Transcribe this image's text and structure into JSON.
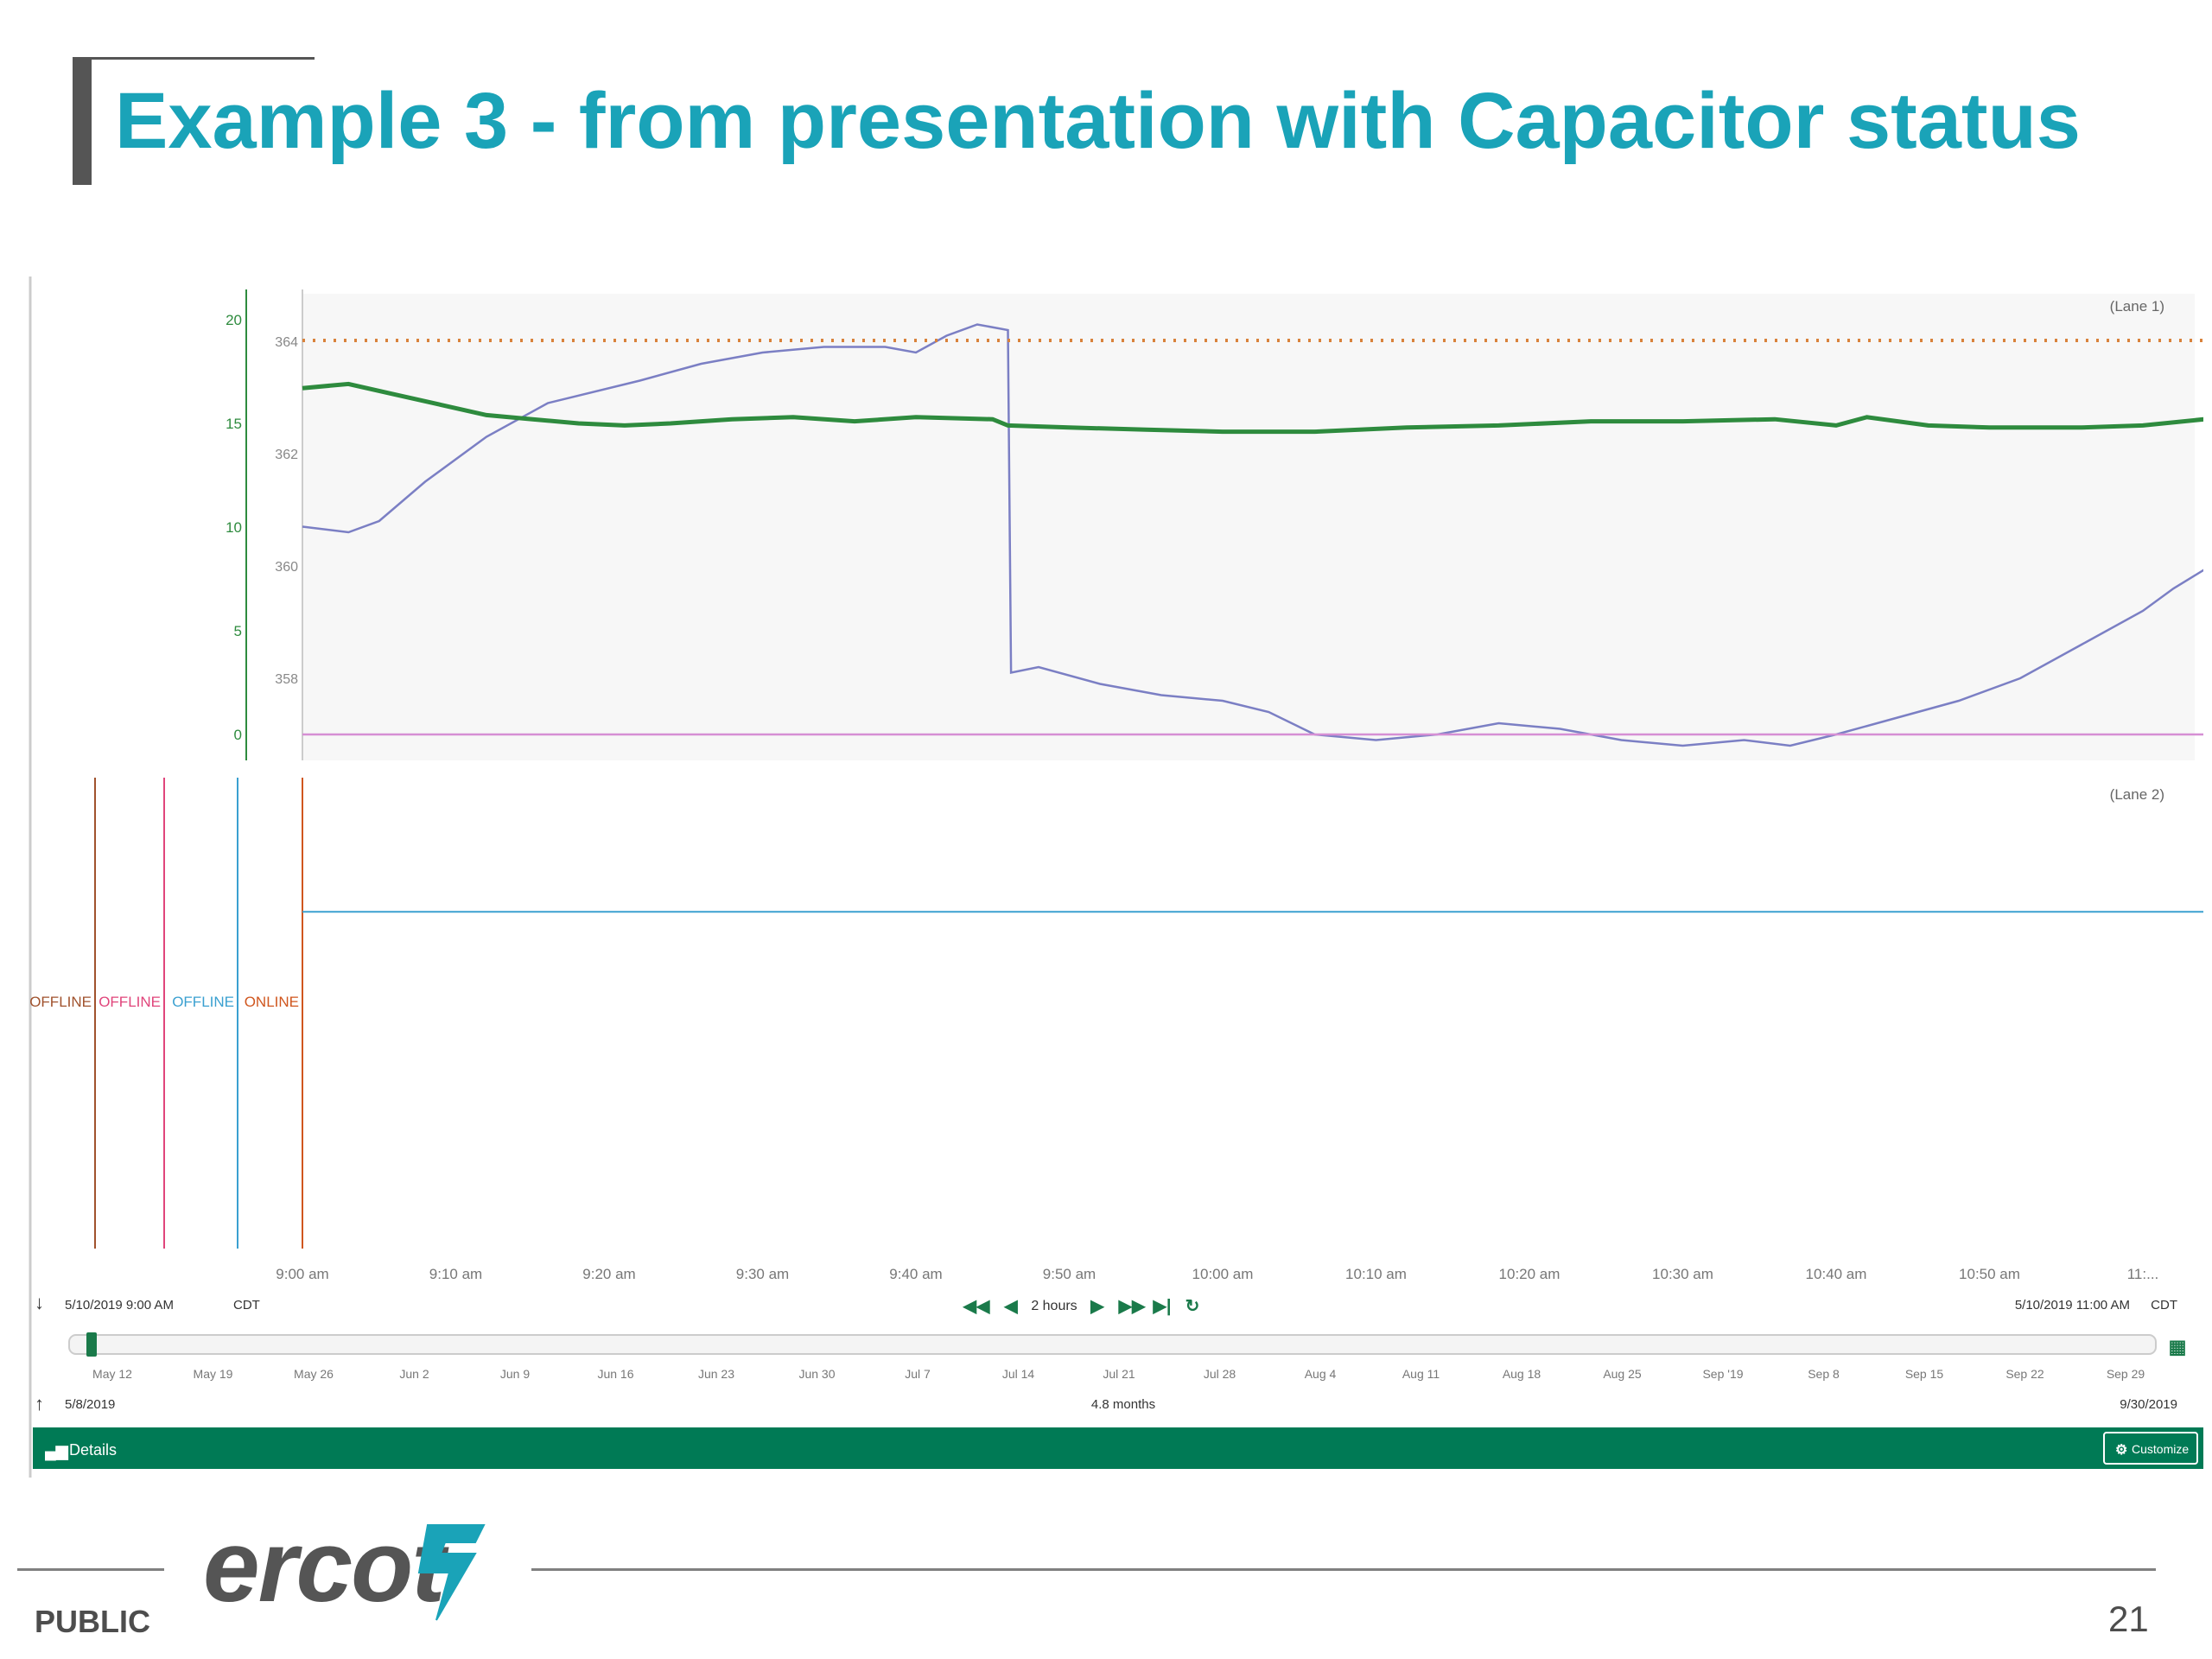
{
  "slide": {
    "title": "Example 3 - from presentation with Capacitor status",
    "footer_label": "PUBLIC",
    "page_number": "21",
    "logo_text": "ercot"
  },
  "chart_data": {
    "type": "line",
    "lanes": [
      {
        "name": "(Lane 1)",
        "y_axes": [
          {
            "ticks": [
              0,
              5,
              10,
              15,
              20
            ],
            "range": [
              0,
              20
            ],
            "color": "#2e8b3e"
          },
          {
            "ticks": [
              358,
              360,
              362,
              364
            ],
            "range": [
              357.0,
              365.0
            ],
            "color": "#888888"
          }
        ],
        "series": [
          {
            "color": "#7b7fc4",
            "axis": 1,
            "points": [
              [
                0,
                360.7
              ],
              [
                3,
                360.6
              ],
              [
                5,
                360.8
              ],
              [
                8,
                361.5
              ],
              [
                12,
                362.3
              ],
              [
                16,
                362.9
              ],
              [
                22,
                363.3
              ],
              [
                26,
                363.6
              ],
              [
                30,
                363.8
              ],
              [
                34,
                363.9
              ],
              [
                38,
                363.9
              ],
              [
                40,
                363.8
              ],
              [
                42,
                364.1
              ],
              [
                44,
                364.3
              ],
              [
                46,
                364.2
              ],
              [
                46.2,
                358.1
              ],
              [
                48,
                358.2
              ],
              [
                52,
                357.9
              ],
              [
                56,
                357.7
              ],
              [
                60,
                357.6
              ],
              [
                63,
                357.4
              ],
              [
                66,
                357.0
              ],
              [
                70,
                356.9
              ],
              [
                74,
                357.0
              ],
              [
                78,
                357.2
              ],
              [
                82,
                357.1
              ],
              [
                86,
                356.9
              ],
              [
                90,
                356.8
              ],
              [
                94,
                356.9
              ],
              [
                97,
                356.8
              ],
              [
                100,
                357.0
              ],
              [
                104,
                357.3
              ],
              [
                108,
                357.6
              ],
              [
                112,
                358.0
              ],
              [
                116,
                358.6
              ],
              [
                120,
                359.2
              ],
              [
                122,
                359.6
              ],
              [
                125,
                360.1
              ],
              [
                128,
                360.5
              ],
              [
                130,
                360.6
              ]
            ]
          },
          {
            "color": "#2e8b3e",
            "axis": 0,
            "points": [
              [
                0,
                16.7
              ],
              [
                3,
                16.9
              ],
              [
                6,
                16.4
              ],
              [
                9,
                15.9
              ],
              [
                12,
                15.4
              ],
              [
                15,
                15.2
              ],
              [
                18,
                15.0
              ],
              [
                21,
                14.9
              ],
              [
                24,
                15.0
              ],
              [
                28,
                15.2
              ],
              [
                32,
                15.3
              ],
              [
                36,
                15.1
              ],
              [
                40,
                15.3
              ],
              [
                45,
                15.2
              ],
              [
                46,
                14.9
              ],
              [
                50,
                14.8
              ],
              [
                55,
                14.7
              ],
              [
                60,
                14.6
              ],
              [
                66,
                14.6
              ],
              [
                72,
                14.8
              ],
              [
                78,
                14.9
              ],
              [
                84,
                15.1
              ],
              [
                90,
                15.1
              ],
              [
                96,
                15.2
              ],
              [
                100,
                14.9
              ],
              [
                102,
                15.3
              ],
              [
                106,
                14.9
              ],
              [
                110,
                14.8
              ],
              [
                116,
                14.8
              ],
              [
                120,
                14.9
              ],
              [
                124,
                15.2
              ],
              [
                128,
                15.7
              ],
              [
                130,
                16.1
              ]
            ]
          },
          {
            "color": "#d9823b",
            "axis": 0,
            "style": "dotted",
            "points": [
              [
                0,
                19.0
              ],
              [
                130,
                19.0
              ]
            ]
          },
          {
            "color": "#d68fd4",
            "axis": 0,
            "points": [
              [
                0,
                0
              ],
              [
                130,
                0
              ]
            ]
          }
        ]
      },
      {
        "name": "(Lane 2)",
        "status_labels": [
          {
            "text": "OFFLINE",
            "color": "#a0522d"
          },
          {
            "text": "OFFLINE",
            "color": "#e0457b"
          },
          {
            "text": "OFFLINE",
            "color": "#3aa0d0"
          },
          {
            "text": "ONLINE",
            "color": "#d0561e"
          }
        ],
        "series": [
          {
            "color": "#3aa0d0",
            "points": [
              [
                0,
                0.5
              ],
              [
                130,
                0.5
              ]
            ]
          }
        ]
      }
    ],
    "x_ticks": [
      "9:00 am",
      "9:10 am",
      "9:20 am",
      "9:30 am",
      "9:40 am",
      "9:50 am",
      "10:00 am",
      "10:10 am",
      "10:20 am",
      "10:30 am",
      "10:40 am",
      "10:50 am",
      "11:..."
    ],
    "x_range_minutes": [
      0,
      120
    ],
    "x_end_minutes": 130,
    "navigator": {
      "start": "5/10/2019 9:00 AM",
      "end": "5/10/2019 11:00 AM",
      "timezone": "CDT",
      "window": "2 hours",
      "overview_ticks": [
        "May 12",
        "May 19",
        "May 26",
        "Jun 2",
        "Jun 9",
        "Jun 16",
        "Jun 23",
        "Jun 30",
        "Jul 7",
        "Jul 14",
        "Jul 21",
        "Jul 28",
        "Aug 4",
        "Aug 11",
        "Aug 18",
        "Aug 25",
        "Sep '19",
        "Sep 8",
        "Sep 15",
        "Sep 22",
        "Sep 29"
      ],
      "overview_start": "5/8/2019",
      "overview_end": "9/30/2019",
      "overview_span": "4.8 months"
    },
    "toolbar": {
      "details_label": "Details",
      "customize_label": "Customize"
    }
  }
}
